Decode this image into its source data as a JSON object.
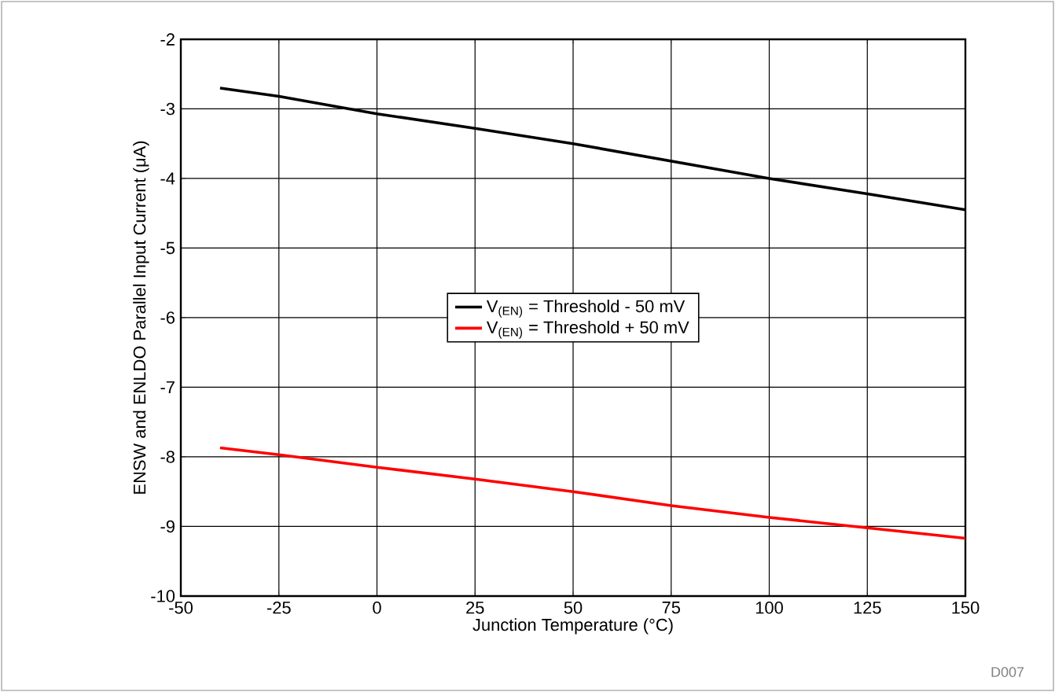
{
  "chart_data": {
    "type": "line",
    "xlabel": "Junction Temperature (°C)",
    "ylabel": "ENSW and ENLDO Parallel Input Current (μA)",
    "x": [
      -40,
      -25,
      0,
      25,
      50,
      75,
      100,
      125,
      150
    ],
    "series": [
      {
        "name": "V$_{(EN)}$ = Threshold - 50 mV",
        "color": "#000000",
        "values": [
          -2.7,
          -2.82,
          -3.07,
          -3.28,
          -3.5,
          -3.75,
          -4.0,
          -4.22,
          -4.45
        ]
      },
      {
        "name": "V$_{(EN)}$ = Threshold + 50 mV",
        "color": "#ff0000",
        "values": [
          -7.87,
          -7.97,
          -8.15,
          -8.32,
          -8.5,
          -8.7,
          -8.87,
          -9.02,
          -9.17
        ]
      }
    ],
    "xlim": [
      -50,
      150
    ],
    "xticks": [
      -50,
      -25,
      0,
      25,
      50,
      75,
      100,
      125,
      150
    ],
    "ylim": [
      -10,
      -2
    ],
    "yticks": [
      -10,
      -9,
      -8,
      -7,
      -6,
      -5,
      -4,
      -3,
      -2
    ],
    "grid": true,
    "legend": "center",
    "line_style": "solid",
    "marker": "none",
    "annotations": [
      "D007"
    ]
  }
}
